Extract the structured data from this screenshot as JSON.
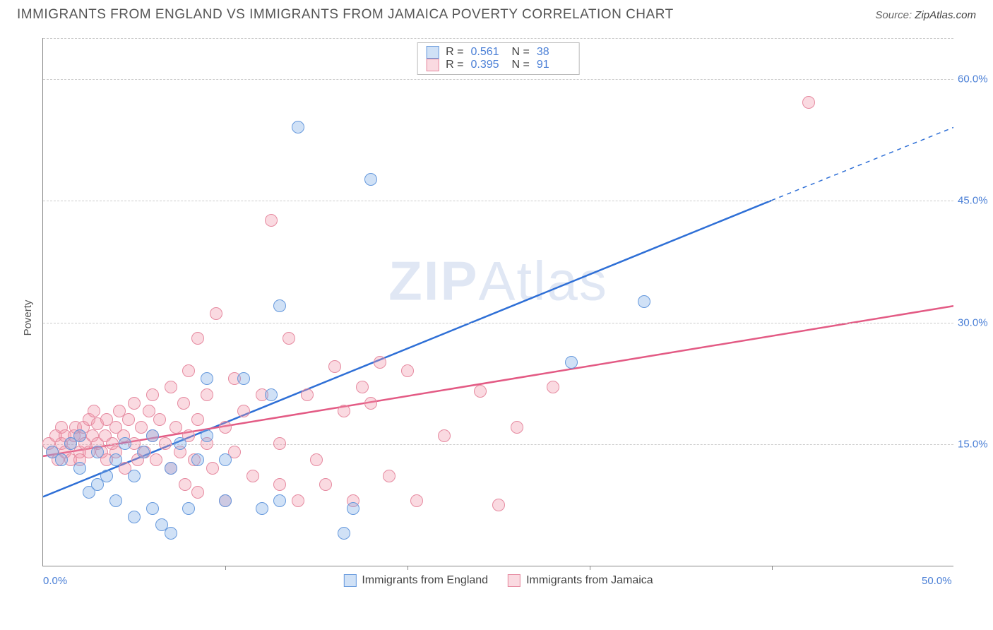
{
  "title": "IMMIGRANTS FROM ENGLAND VS IMMIGRANTS FROM JAMAICA POVERTY CORRELATION CHART",
  "source_label": "Source: ",
  "source_value": "ZipAtlas.com",
  "ylabel": "Poverty",
  "watermark_a": "ZIP",
  "watermark_b": "Atlas",
  "chart": {
    "type": "scatter_with_trend",
    "xlim": [
      0,
      50
    ],
    "ylim": [
      0,
      65
    ],
    "x_ticks": [
      0,
      50
    ],
    "x_tick_labels": [
      "0.0%",
      "50.0%"
    ],
    "x_minor_ticks": [
      10,
      20,
      30,
      40
    ],
    "y_ticks": [
      15,
      30,
      45,
      60
    ],
    "y_tick_labels": [
      "15.0%",
      "30.0%",
      "45.0%",
      "60.0%"
    ],
    "background_color": "#ffffff",
    "grid_color": "#cccccc",
    "axis_color": "#888888",
    "tick_label_color": "#4a7fd6",
    "marker_radius": 9,
    "marker_stroke": 1.5,
    "line_width": 2.5,
    "series": [
      {
        "name": "Immigrants from England",
        "fill": "rgba(120,170,230,0.35)",
        "stroke": "#6699dd",
        "line_color": "#2e6fd6",
        "R_label": "R  =",
        "R": "0.561",
        "N_label": "N  =",
        "N": "38",
        "trend": {
          "x1": 0,
          "y1": 8.5,
          "x2": 40,
          "y2": 45,
          "dash_x2": 50,
          "dash_y2": 54
        },
        "points": [
          [
            0.5,
            14
          ],
          [
            1,
            13
          ],
          [
            1.5,
            15
          ],
          [
            2,
            12
          ],
          [
            2,
            16
          ],
          [
            2.5,
            9
          ],
          [
            3,
            10
          ],
          [
            3,
            14
          ],
          [
            3.5,
            11
          ],
          [
            4,
            13
          ],
          [
            4,
            8
          ],
          [
            4.5,
            15
          ],
          [
            5,
            6
          ],
          [
            5,
            11
          ],
          [
            5.5,
            14
          ],
          [
            6,
            7
          ],
          [
            6,
            16
          ],
          [
            6.5,
            5
          ],
          [
            7,
            12
          ],
          [
            7,
            4
          ],
          [
            7.5,
            15
          ],
          [
            8,
            7
          ],
          [
            8.5,
            13
          ],
          [
            9,
            16
          ],
          [
            9,
            23
          ],
          [
            10,
            13
          ],
          [
            10,
            8
          ],
          [
            11,
            23
          ],
          [
            12,
            7
          ],
          [
            12.5,
            21
          ],
          [
            13,
            32
          ],
          [
            13,
            8
          ],
          [
            14,
            54
          ],
          [
            16.5,
            4
          ],
          [
            17,
            7
          ],
          [
            18,
            47.5
          ],
          [
            29,
            25
          ],
          [
            33,
            32.5
          ]
        ]
      },
      {
        "name": "Immigrants from Jamaica",
        "fill": "rgba(240,150,170,0.35)",
        "stroke": "#e68aa0",
        "line_color": "#e35a84",
        "R_label": "R  =",
        "R": "0.395",
        "N_label": "N  =",
        "N": "91",
        "trend": {
          "x1": 0,
          "y1": 13.5,
          "x2": 50,
          "y2": 32
        },
        "points": [
          [
            0.3,
            15
          ],
          [
            0.5,
            14
          ],
          [
            0.7,
            16
          ],
          [
            0.8,
            13
          ],
          [
            1,
            15
          ],
          [
            1,
            17
          ],
          [
            1.2,
            14
          ],
          [
            1.2,
            16
          ],
          [
            1.5,
            15
          ],
          [
            1.5,
            13
          ],
          [
            1.7,
            16
          ],
          [
            1.8,
            17
          ],
          [
            2,
            14
          ],
          [
            2,
            16
          ],
          [
            2,
            13
          ],
          [
            2.2,
            17
          ],
          [
            2.3,
            15
          ],
          [
            2.5,
            18
          ],
          [
            2.5,
            14
          ],
          [
            2.7,
            16
          ],
          [
            2.8,
            19
          ],
          [
            3,
            15
          ],
          [
            3,
            17.5
          ],
          [
            3.2,
            14
          ],
          [
            3.4,
            16
          ],
          [
            3.5,
            13
          ],
          [
            3.5,
            18
          ],
          [
            3.8,
            15
          ],
          [
            4,
            17
          ],
          [
            4,
            14
          ],
          [
            4.2,
            19
          ],
          [
            4.4,
            16
          ],
          [
            4.5,
            12
          ],
          [
            4.7,
            18
          ],
          [
            5,
            15
          ],
          [
            5,
            20
          ],
          [
            5.2,
            13
          ],
          [
            5.4,
            17
          ],
          [
            5.6,
            14
          ],
          [
            5.8,
            19
          ],
          [
            6,
            16
          ],
          [
            6,
            21
          ],
          [
            6.2,
            13
          ],
          [
            6.4,
            18
          ],
          [
            6.7,
            15
          ],
          [
            7,
            12
          ],
          [
            7,
            22
          ],
          [
            7.3,
            17
          ],
          [
            7.5,
            14
          ],
          [
            7.7,
            20
          ],
          [
            7.8,
            10
          ],
          [
            8,
            16
          ],
          [
            8,
            24
          ],
          [
            8.3,
            13
          ],
          [
            8.5,
            18
          ],
          [
            8.5,
            28
          ],
          [
            8.5,
            9
          ],
          [
            9,
            15
          ],
          [
            9,
            21
          ],
          [
            9.3,
            12
          ],
          [
            9.5,
            31
          ],
          [
            10,
            17
          ],
          [
            10,
            8
          ],
          [
            10.5,
            14
          ],
          [
            10.5,
            23
          ],
          [
            11,
            19
          ],
          [
            11.5,
            11
          ],
          [
            12,
            21
          ],
          [
            12.5,
            42.5
          ],
          [
            13,
            10
          ],
          [
            13,
            15
          ],
          [
            13.5,
            28
          ],
          [
            14,
            8
          ],
          [
            14.5,
            21
          ],
          [
            15,
            13
          ],
          [
            15.5,
            10
          ],
          [
            16,
            24.5
          ],
          [
            16.5,
            19
          ],
          [
            17,
            8
          ],
          [
            17.5,
            22
          ],
          [
            18,
            20
          ],
          [
            18.5,
            25
          ],
          [
            19,
            11
          ],
          [
            20,
            24
          ],
          [
            20.5,
            8
          ],
          [
            22,
            16
          ],
          [
            24,
            21.5
          ],
          [
            25,
            7.5
          ],
          [
            26,
            17
          ],
          [
            28,
            22
          ],
          [
            42,
            57
          ]
        ]
      }
    ]
  }
}
